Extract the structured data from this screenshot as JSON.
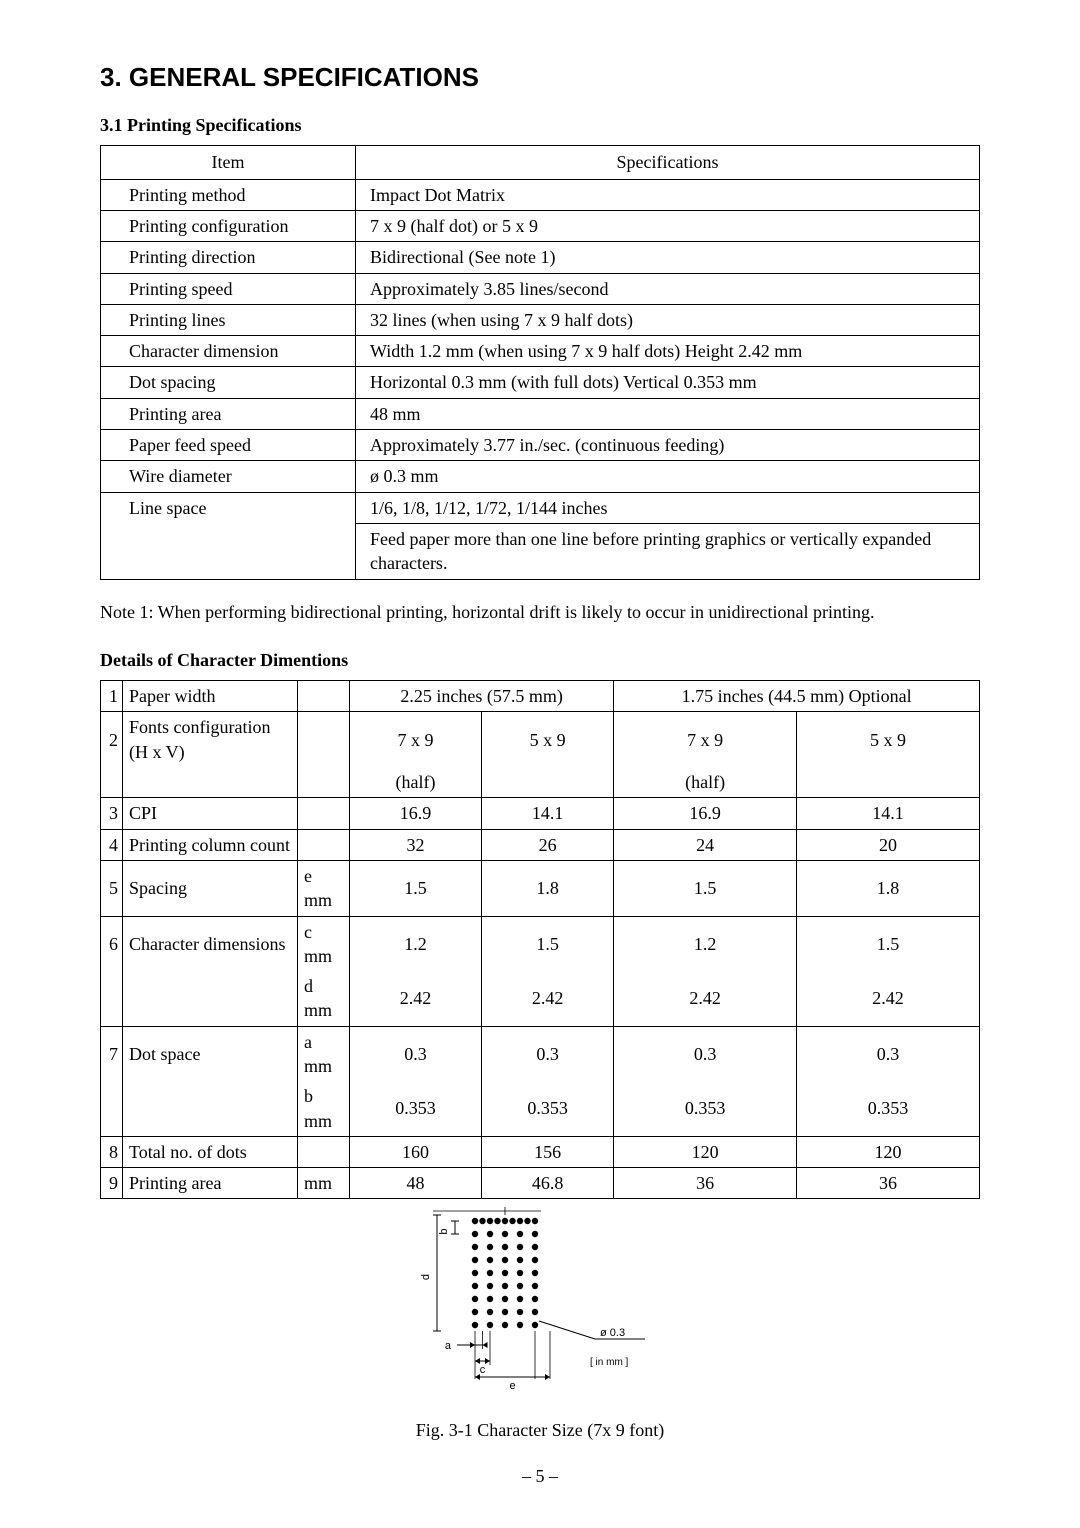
{
  "heading": "3. GENERAL SPECIFICATIONS",
  "section": "3.1 Printing Specifications",
  "spec_header": {
    "item": "Item",
    "spec": "Specifications"
  },
  "specs": [
    {
      "item": "Printing method",
      "val": "Impact Dot Matrix"
    },
    {
      "item": "Printing configuration",
      "val": "7 x 9 (half dot) or 5 x 9"
    },
    {
      "item": "Printing direction",
      "val": "Bidirectional (See note 1)"
    },
    {
      "item": "Printing speed",
      "val": "Approximately 3.85 lines/second"
    },
    {
      "item": "Printing lines",
      "val": "32 lines (when using 7 x 9 half dots)"
    },
    {
      "item": "Character dimension",
      "val": "Width   1.2 mm  (when using 7 x 9 half dots) Height   2.42 mm"
    },
    {
      "item": "Dot spacing",
      "val": "Horizontal  0.3 mm (with full dots) Vertical  0.353 mm"
    },
    {
      "item": "Printing area",
      "val": "48 mm"
    },
    {
      "item": "Paper feed speed",
      "val": "Approximately 3.77 in./sec. (continuous feeding)"
    },
    {
      "item": "Wire diameter",
      "val": "ø 0.3 mm"
    },
    {
      "item": "Line space",
      "val": "1/6, 1/8, 1/12, 1/72, 1/144 inches"
    },
    {
      "item": "",
      "val": "Feed paper more than one line before printing graphics or vertically expanded characters."
    }
  ],
  "note1": "Note 1: When performing bidirectional printing, horizontal drift is likely to occur in unidirectional printing.",
  "dim_heading": "Details of Character Dimentions",
  "dim": {
    "headers": {
      "paper_225": "2.25 inches (57.5 mm)",
      "paper_175": "1.75 inches (44.5 mm) Optional"
    },
    "rows": {
      "r1": {
        "n": "1",
        "label": "Paper width",
        "unit": ""
      },
      "r2a": {
        "n": "2",
        "label": "Fonts configuration (H x V)",
        "unit": "",
        "c": [
          "7 x 9",
          "5 x 9",
          "7 x 9",
          "5 x 9"
        ]
      },
      "r2b": {
        "n": "",
        "label": "",
        "unit": "",
        "c": [
          "(half)",
          "",
          "(half)",
          ""
        ]
      },
      "r3": {
        "n": "3",
        "label": "CPI",
        "unit": "",
        "c": [
          "16.9",
          "14.1",
          "16.9",
          "14.1"
        ]
      },
      "r4": {
        "n": "4",
        "label": "Printing column count",
        "unit": "",
        "c": [
          "32",
          "26",
          "24",
          "20"
        ]
      },
      "r5": {
        "n": "5",
        "label": "Spacing",
        "unit": "e mm",
        "c": [
          "1.5",
          "1.8",
          "1.5",
          "1.8"
        ]
      },
      "r6a": {
        "n": "6",
        "label": "Character dimensions",
        "unit": "c mm",
        "c": [
          "1.2",
          "1.5",
          "1.2",
          "1.5"
        ]
      },
      "r6b": {
        "n": "",
        "label": "",
        "unit": "d mm",
        "c": [
          "2.42",
          "2.42",
          "2.42",
          "2.42"
        ]
      },
      "r7a": {
        "n": "7",
        "label": "Dot space",
        "unit": "a mm",
        "c": [
          "0.3",
          "0.3",
          "0.3",
          "0.3"
        ]
      },
      "r7b": {
        "n": "",
        "label": "",
        "unit": "b mm",
        "c": [
          "0.353",
          "0.353",
          "0.353",
          "0.353"
        ]
      },
      "r8": {
        "n": "8",
        "label": "Total no. of dots",
        "unit": "",
        "c": [
          "160",
          "156",
          "120",
          "120"
        ]
      },
      "r9": {
        "n": "9",
        "label": "Printing area",
        "unit": "mm",
        "c": [
          "48",
          "46.8",
          "36",
          "36"
        ]
      }
    }
  },
  "figure": {
    "caption": "Fig. 3-1 Character Size (7x 9 font)",
    "diameter_label": "ø 0.3",
    "unit_label": "[ in mm ]",
    "labels": {
      "a": "a",
      "b": "b",
      "c": "c",
      "d": "d",
      "e": "e"
    },
    "dot_color": "#000000",
    "cols": 5,
    "rows": 9,
    "hspace": 15,
    "vspace": 13,
    "dot_r": 3.2
  },
  "page_number": "– 5 –",
  "style": {
    "text_color": "#000000",
    "background": "#ffffff",
    "border_color": "#000000",
    "heading_font": "Arial",
    "body_font": "Times New Roman",
    "body_fontsize": 18,
    "heading_fontsize": 26
  }
}
